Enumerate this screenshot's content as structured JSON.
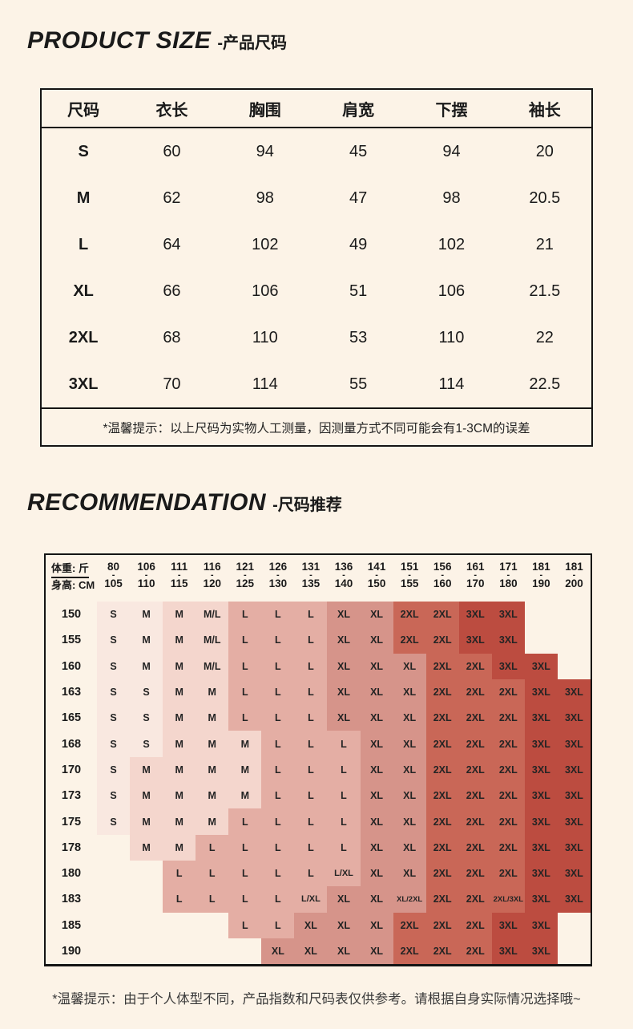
{
  "section1": {
    "title_en": "PRODUCT SIZE",
    "title_zh": "-产品尺码",
    "table": {
      "headers": [
        "尺码",
        "衣长",
        "胸围",
        "肩宽",
        "下摆",
        "袖长"
      ],
      "rows": [
        [
          "S",
          "60",
          "94",
          "45",
          "94",
          "20"
        ],
        [
          "M",
          "62",
          "98",
          "47",
          "98",
          "20.5"
        ],
        [
          "L",
          "64",
          "102",
          "49",
          "102",
          "21"
        ],
        [
          "XL",
          "66",
          "106",
          "51",
          "106",
          "21.5"
        ],
        [
          "2XL",
          "68",
          "110",
          "53",
          "110",
          "22"
        ],
        [
          "3XL",
          "70",
          "114",
          "55",
          "114",
          "22.5"
        ]
      ],
      "note": "*温馨提示：以上尺码为实物人工测量，因测量方式不同可能会有1-3CM的误差"
    }
  },
  "section2": {
    "title_en": "RECOMMENDATION",
    "title_zh": "-尺码推荐",
    "table": {
      "corner_top": "体重: 斤",
      "corner_bottom": "身高: CM",
      "weight_columns": [
        [
          "80",
          "105"
        ],
        [
          "106",
          "110"
        ],
        [
          "111",
          "115"
        ],
        [
          "116",
          "120"
        ],
        [
          "121",
          "125"
        ],
        [
          "126",
          "130"
        ],
        [
          "131",
          "135"
        ],
        [
          "136",
          "140"
        ],
        [
          "141",
          "150"
        ],
        [
          "151",
          "155"
        ],
        [
          "156",
          "160"
        ],
        [
          "161",
          "170"
        ],
        [
          "171",
          "180"
        ],
        [
          "181",
          "190"
        ],
        [
          "181",
          "200"
        ]
      ],
      "height_rows": [
        "150",
        "155",
        "160",
        "163",
        "165",
        "168",
        "170",
        "173",
        "175",
        "178",
        "180",
        "183",
        "185",
        "190"
      ],
      "cells": [
        [
          "S",
          "M",
          "M",
          "M/L",
          "L",
          "L",
          "L",
          "XL",
          "XL",
          "2XL",
          "2XL",
          "3XL",
          "3XL",
          "",
          ""
        ],
        [
          "S",
          "M",
          "M",
          "M/L",
          "L",
          "L",
          "L",
          "XL",
          "XL",
          "2XL",
          "2XL",
          "3XL",
          "3XL",
          "",
          ""
        ],
        [
          "S",
          "M",
          "M",
          "M/L",
          "L",
          "L",
          "L",
          "XL",
          "XL",
          "XL",
          "2XL",
          "2XL",
          "3XL",
          "3XL",
          ""
        ],
        [
          "S",
          "S",
          "M",
          "M",
          "L",
          "L",
          "L",
          "XL",
          "XL",
          "XL",
          "2XL",
          "2XL",
          "2XL",
          "3XL",
          "3XL"
        ],
        [
          "S",
          "S",
          "M",
          "M",
          "L",
          "L",
          "L",
          "XL",
          "XL",
          "XL",
          "2XL",
          "2XL",
          "2XL",
          "3XL",
          "3XL"
        ],
        [
          "S",
          "S",
          "M",
          "M",
          "M",
          "L",
          "L",
          "L",
          "XL",
          "XL",
          "2XL",
          "2XL",
          "2XL",
          "3XL",
          "3XL"
        ],
        [
          "S",
          "M",
          "M",
          "M",
          "M",
          "L",
          "L",
          "L",
          "XL",
          "XL",
          "2XL",
          "2XL",
          "2XL",
          "3XL",
          "3XL"
        ],
        [
          "S",
          "M",
          "M",
          "M",
          "M",
          "L",
          "L",
          "L",
          "XL",
          "XL",
          "2XL",
          "2XL",
          "2XL",
          "3XL",
          "3XL"
        ],
        [
          "S",
          "M",
          "M",
          "M",
          "L",
          "L",
          "L",
          "L",
          "XL",
          "XL",
          "2XL",
          "2XL",
          "2XL",
          "3XL",
          "3XL"
        ],
        [
          "",
          "M",
          "M",
          "L",
          "L",
          "L",
          "L",
          "L",
          "XL",
          "XL",
          "2XL",
          "2XL",
          "2XL",
          "3XL",
          "3XL"
        ],
        [
          "",
          "",
          "L",
          "L",
          "L",
          "L",
          "L",
          "L/XL",
          "XL",
          "XL",
          "2XL",
          "2XL",
          "2XL",
          "3XL",
          "3XL"
        ],
        [
          "",
          "",
          "L",
          "L",
          "L",
          "L",
          "L/XL",
          "XL",
          "XL",
          "XL/2XL",
          "2XL",
          "2XL",
          "2XL/3XL",
          "3XL",
          "3XL"
        ],
        [
          "",
          "",
          "",
          "",
          "L",
          "L",
          "XL",
          "XL",
          "XL",
          "2XL",
          "2XL",
          "2XL",
          "3XL",
          "3XL",
          ""
        ],
        [
          "",
          "",
          "",
          "",
          "",
          "XL",
          "XL",
          "XL",
          "XL",
          "2XL",
          "2XL",
          "2XL",
          "3XL",
          "3XL",
          ""
        ]
      ],
      "bands": [
        [
          "A",
          "A",
          "B",
          "B",
          "C",
          "C",
          "C",
          "D",
          "D",
          "E",
          "E",
          "F",
          "F",
          "",
          ""
        ],
        [
          "A",
          "A",
          "B",
          "B",
          "C",
          "C",
          "C",
          "D",
          "D",
          "E",
          "E",
          "F",
          "F",
          "",
          ""
        ],
        [
          "A",
          "A",
          "B",
          "B",
          "C",
          "C",
          "C",
          "D",
          "D",
          "D",
          "E",
          "E",
          "F",
          "F",
          ""
        ],
        [
          "A",
          "A",
          "B",
          "B",
          "C",
          "C",
          "C",
          "D",
          "D",
          "D",
          "E",
          "E",
          "E",
          "F",
          "F"
        ],
        [
          "A",
          "A",
          "B",
          "B",
          "C",
          "C",
          "C",
          "D",
          "D",
          "D",
          "E",
          "E",
          "E",
          "F",
          "F"
        ],
        [
          "A",
          "A",
          "B",
          "B",
          "B",
          "C",
          "C",
          "C",
          "D",
          "D",
          "E",
          "E",
          "E",
          "F",
          "F"
        ],
        [
          "A",
          "B",
          "B",
          "B",
          "B",
          "C",
          "C",
          "C",
          "D",
          "D",
          "E",
          "E",
          "E",
          "F",
          "F"
        ],
        [
          "A",
          "B",
          "B",
          "B",
          "B",
          "C",
          "C",
          "C",
          "D",
          "D",
          "E",
          "E",
          "E",
          "F",
          "F"
        ],
        [
          "A",
          "B",
          "B",
          "B",
          "C",
          "C",
          "C",
          "C",
          "D",
          "D",
          "E",
          "E",
          "E",
          "F",
          "F"
        ],
        [
          "",
          "B",
          "B",
          "C",
          "C",
          "C",
          "C",
          "C",
          "D",
          "D",
          "E",
          "E",
          "E",
          "F",
          "F"
        ],
        [
          "",
          "",
          "C",
          "C",
          "C",
          "C",
          "C",
          "C",
          "D",
          "D",
          "E",
          "E",
          "E",
          "F",
          "F"
        ],
        [
          "",
          "",
          "C",
          "C",
          "C",
          "C",
          "C",
          "D",
          "D",
          "D",
          "E",
          "E",
          "E",
          "F",
          "F"
        ],
        [
          "",
          "",
          "",
          "",
          "C",
          "C",
          "D",
          "D",
          "D",
          "E",
          "E",
          "E",
          "F",
          "F",
          ""
        ],
        [
          "",
          "",
          "",
          "",
          "",
          "D",
          "D",
          "D",
          "D",
          "E",
          "E",
          "E",
          "F",
          "F",
          ""
        ]
      ],
      "band_colors": {
        "A": "#f9e8e0",
        "B": "#f4d6cd",
        "C": "#e4aea4",
        "D": "#d6948a",
        "E": "#c96757",
        "F": "#bc4c40"
      }
    }
  },
  "footer_note": "*温馨提示：由于个人体型不同，产品指数和尺码表仅供参考。请根据自身实际情况选择哦~",
  "colors": {
    "page_bg": "#fcf3e7",
    "border": "#141414",
    "text": "#1a1a1a"
  }
}
